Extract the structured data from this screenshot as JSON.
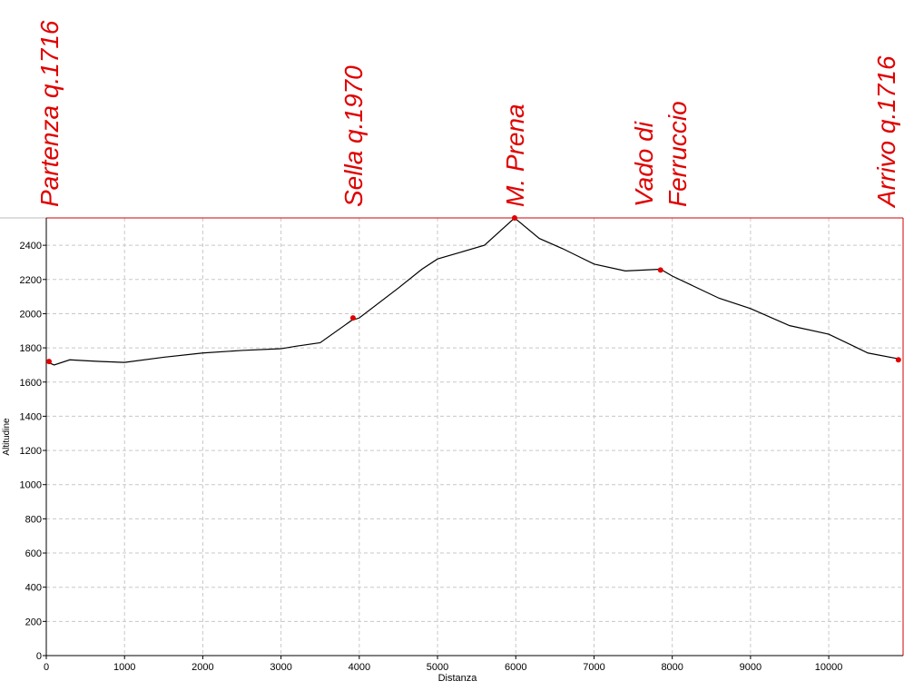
{
  "chart_data": {
    "type": "line",
    "xlabel": "Distanza",
    "ylabel": "Altitudine",
    "x": [
      0,
      100,
      300,
      500,
      700,
      1000,
      1500,
      2000,
      2500,
      3000,
      3200,
      3500,
      3900,
      4000,
      4500,
      4800,
      5000,
      5300,
      5600,
      5985,
      6300,
      6600,
      7000,
      7400,
      7850,
      8000,
      8600,
      9000,
      9500,
      10000,
      10500,
      10900
    ],
    "series": [
      {
        "color": "#000000",
        "values": [
          1720,
          1700,
          1730,
          1725,
          1720,
          1715,
          1745,
          1770,
          1785,
          1795,
          1810,
          1830,
          1960,
          1975,
          2150,
          2260,
          2320,
          2360,
          2400,
          2560,
          2440,
          2380,
          2290,
          2250,
          2260,
          2220,
          2090,
          2030,
          1930,
          1880,
          1770,
          1735
        ]
      }
    ],
    "waypoints": [
      {
        "label": [
          "Partenza q.1716"
        ],
        "x": 35,
        "y": 1720
      },
      {
        "label": [
          "Sella q.1970"
        ],
        "x": 3920,
        "y": 1975
      },
      {
        "label": [
          "M. Prena"
        ],
        "x": 5985,
        "y": 2560
      },
      {
        "label": [
          "Vado di",
          "Ferruccio"
        ],
        "x": 7850,
        "y": 2255
      },
      {
        "label": [
          "Arrivo q.1716"
        ],
        "x": 10890,
        "y": 1730
      }
    ],
    "marker_color": "#e00000",
    "label_color": "#e00000",
    "xlim": [
      0,
      10950
    ],
    "ylim": [
      0,
      2560
    ],
    "xticks": [
      0,
      1000,
      2000,
      3000,
      4000,
      5000,
      6000,
      7000,
      8000,
      9000,
      10000
    ],
    "yticks": [
      0,
      200,
      400,
      600,
      800,
      1000,
      1200,
      1400,
      1600,
      1800,
      2000,
      2200,
      2400
    ],
    "grid": true
  }
}
